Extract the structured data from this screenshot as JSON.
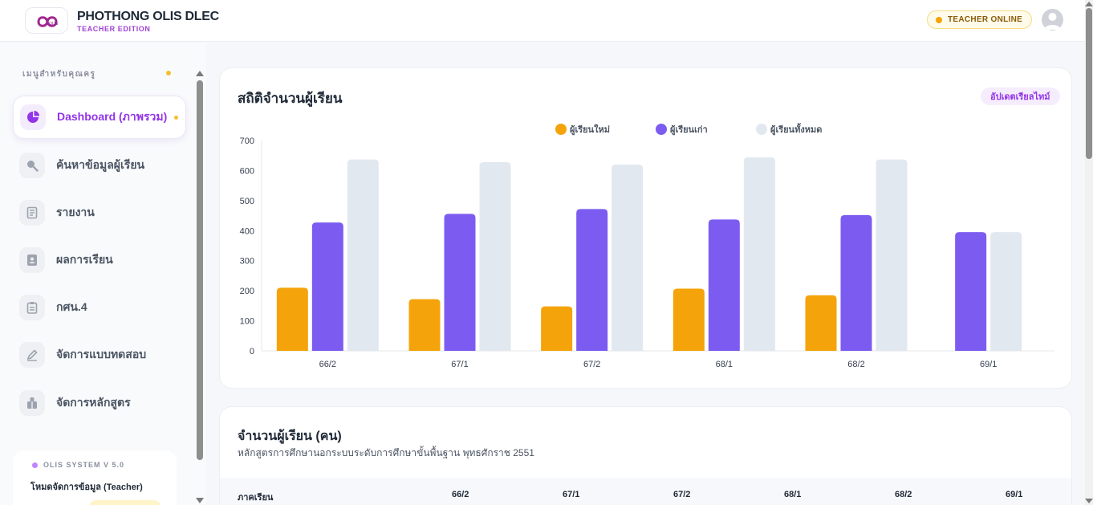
{
  "header": {
    "brand_title": "PHOTHONG OLIS DLEC",
    "brand_sub": "TEACHER EDITION",
    "status": "TEACHER ONLINE",
    "logo_icon": "infinity-logo-icon",
    "avatar_icon": "user-avatar-icon"
  },
  "sidebar": {
    "title": "เมนูสำหรับคุณครู",
    "items": [
      {
        "label": "Dashboard (ภาพรวม)",
        "icon": "pie-chart-icon",
        "active": true
      },
      {
        "label": "ค้นหาข้อมูลผู้เรียน",
        "icon": "search-icon"
      },
      {
        "label": "รายงาน",
        "icon": "report-icon"
      },
      {
        "label": "ผลการเรียน",
        "icon": "id-card-icon"
      },
      {
        "label": "กศน.4",
        "icon": "clipboard-icon"
      },
      {
        "label": "จัดการแบบทดสอบ",
        "icon": "edit-icon"
      },
      {
        "label": "จัดการหลักสูตร",
        "icon": "curriculum-icon"
      }
    ],
    "system": {
      "version": "OLIS SYSTEM V 5.0",
      "mode": "โหมดจัดการข้อมูล (Teacher)"
    }
  },
  "stats_card": {
    "title": "สถิติจำนวนผู้เรียน",
    "update_label": "อัปเดตเรียลไทม์"
  },
  "chart_data": {
    "type": "bar",
    "categories": [
      "66/2",
      "67/1",
      "67/2",
      "68/1",
      "68/2",
      "69/1"
    ],
    "series": [
      {
        "name": "ผู้เรียนใหม่",
        "color": "#f5a30a",
        "values": [
          210,
          172,
          148,
          207,
          185,
          0
        ]
      },
      {
        "name": "ผู้เรียนเก่า",
        "color": "#7c5cf0",
        "values": [
          427,
          456,
          472,
          437,
          452,
          395
        ]
      },
      {
        "name": "ผู้เรียนทั้งหมด",
        "color": "#e2e8f0",
        "values": [
          637,
          628,
          620,
          644,
          637,
          395
        ]
      }
    ],
    "ylim": [
      0,
      700
    ],
    "yticks": [
      0,
      100,
      200,
      300,
      400,
      500,
      600,
      700
    ],
    "legend_position": "top-center",
    "grid": false
  },
  "table_card": {
    "title": "จำนวนผู้เรียน (คน)",
    "subtitle": "หลักสูตรการศึกษานอกระบบระดับการศึกษาขั้นพื้นฐาน พุทธศักราช 2551",
    "head_label": "ภาคเรียน",
    "columns": [
      "66/2",
      "67/1",
      "67/2",
      "68/1",
      "68/2",
      "69/1"
    ]
  }
}
